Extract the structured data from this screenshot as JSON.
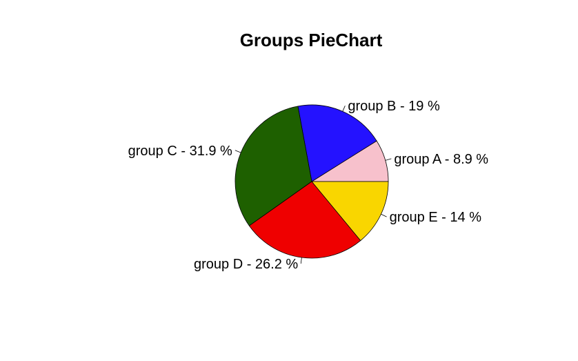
{
  "chart_data": {
    "type": "pie",
    "title": "Groups PieChart",
    "slices": [
      {
        "label": "group A -  8.9 %",
        "value": 8.9,
        "color": "#F7C1CC"
      },
      {
        "label": "group B -  19 %",
        "value": 19,
        "color": "#2412FF"
      },
      {
        "label": "group C -  31.9 %",
        "value": 31.9,
        "color": "#1E6000"
      },
      {
        "label": "group D -  26.2 %",
        "value": 26.2,
        "color": "#EF0000"
      },
      {
        "label": "group E -  14 %",
        "value": 14,
        "color": "#F9D600"
      }
    ],
    "start_angle_deg": 0,
    "direction": "counterclockwise",
    "border_color": "#000000"
  }
}
